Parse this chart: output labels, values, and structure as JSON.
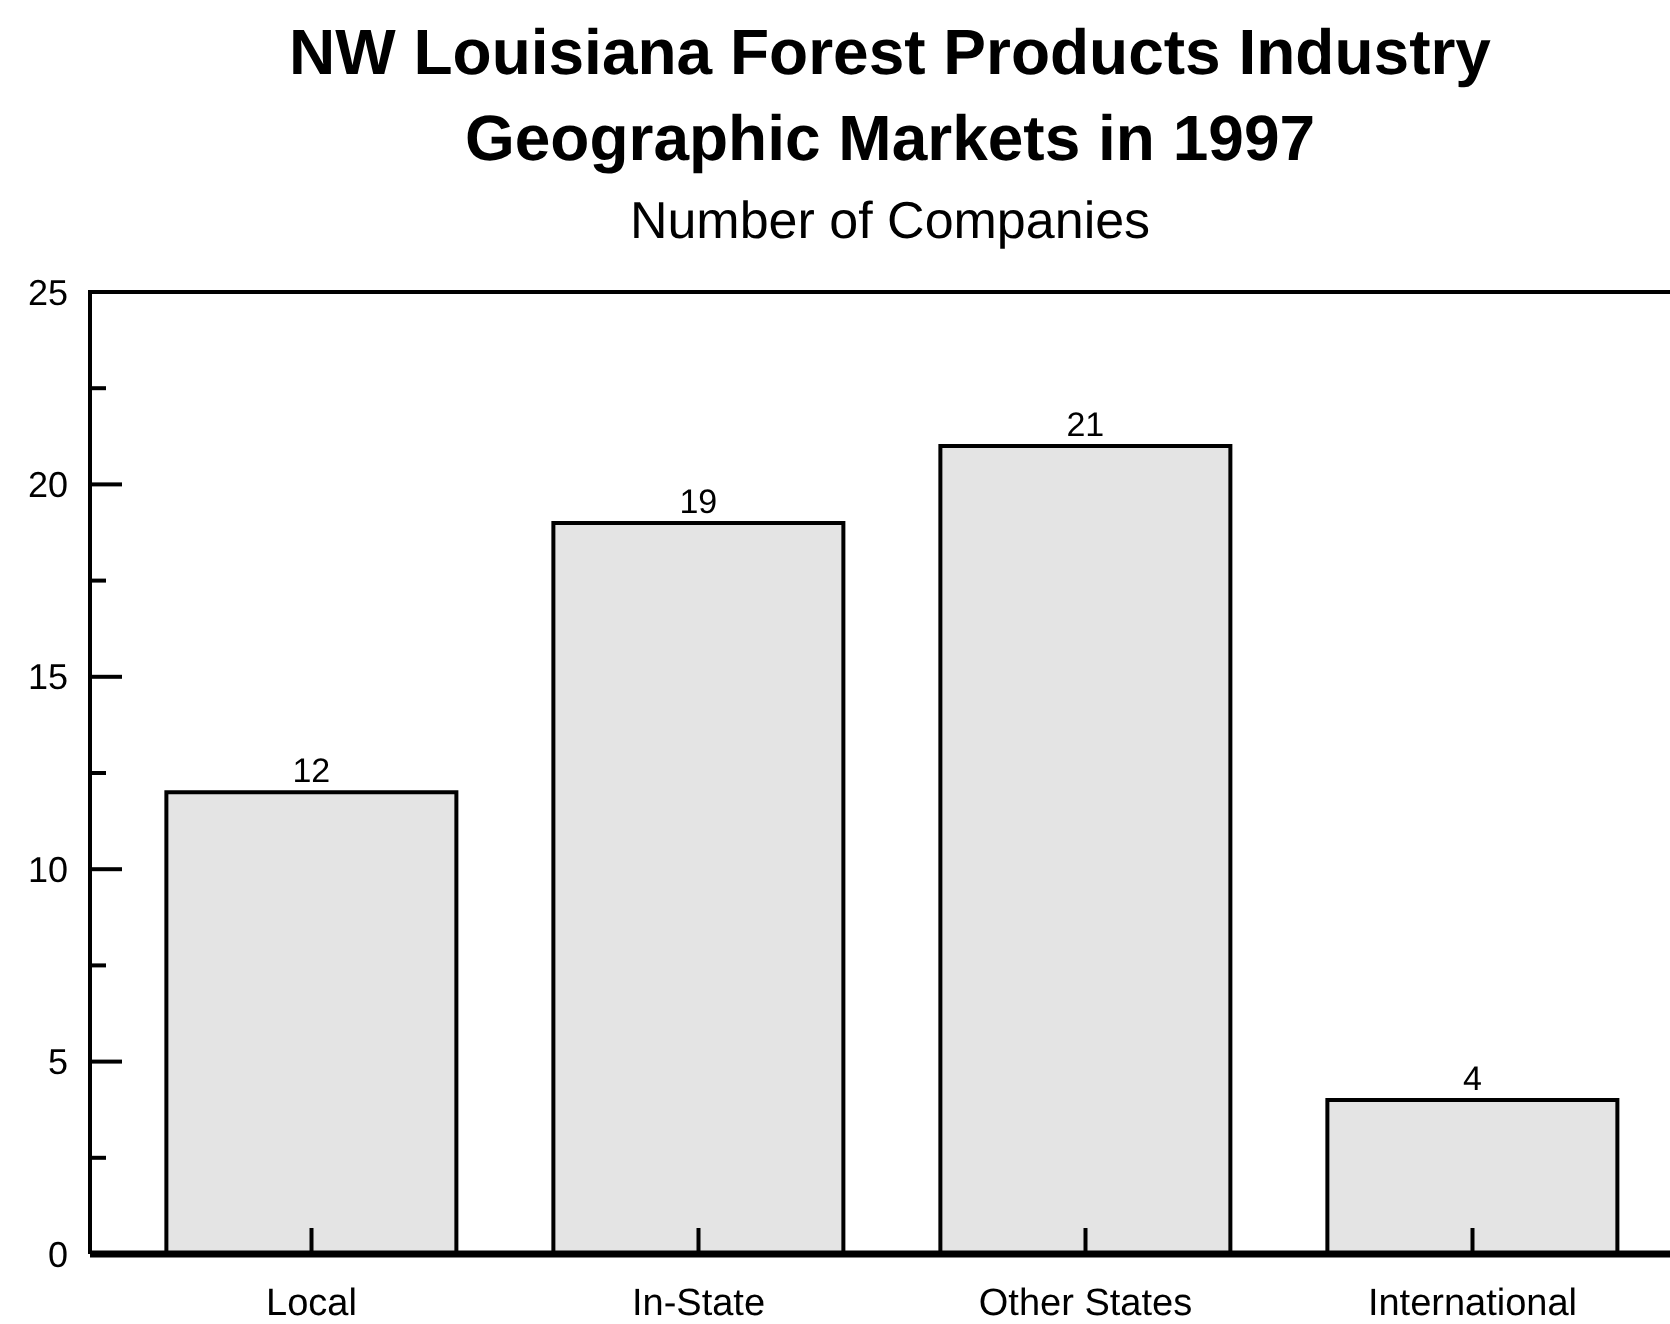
{
  "chart_data": {
    "type": "bar",
    "title": "NW Louisiana Forest Products Industry\nGeographic Markets in 1997",
    "subtitle": "Number of Companies",
    "categories": [
      "Local",
      "In-State",
      "Other States",
      "International"
    ],
    "values": [
      12,
      19,
      21,
      4
    ],
    "color": "#e4e4e4",
    "ylim": [
      0,
      25
    ],
    "yticks": [
      0,
      {
        "value": 2.5,
        "label": null
      },
      5,
      {
        "value": 7.5,
        "label": null
      },
      10,
      {
        "value": 12.5,
        "label": null
      },
      15,
      {
        "value": 17.5,
        "label": null
      },
      20,
      {
        "value": 22.5,
        "label": null
      },
      25
    ],
    "grid": false,
    "data_labels": true
  }
}
